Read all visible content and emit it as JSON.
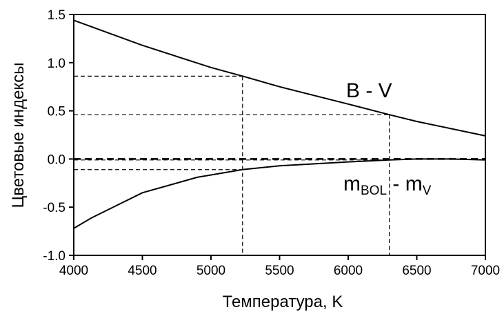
{
  "chart_data": {
    "type": "line",
    "xlabel": "Температура, K",
    "ylabel": "Цветовые индексы",
    "xlim": [
      4000,
      7000
    ],
    "ylim": [
      -1.0,
      1.5
    ],
    "xticks": [
      "4000",
      "4500",
      "5000",
      "5500",
      "6000",
      "6500",
      "7000"
    ],
    "yticks": [
      "1.5",
      "1.0",
      "0.5",
      "0.0",
      "-0.5",
      "-1.0"
    ],
    "grid": false,
    "series": [
      {
        "name": "B - V",
        "x": [
          4000,
          4500,
          5000,
          5230,
          5500,
          6000,
          6300,
          6500,
          7000
        ],
        "y": [
          1.44,
          1.18,
          0.95,
          0.86,
          0.75,
          0.57,
          0.46,
          0.39,
          0.24
        ]
      },
      {
        "name": "m_BOL - m_V",
        "x": [
          4000,
          4130,
          4500,
          4900,
          5230,
          5500,
          6000,
          6300,
          6500,
          6750,
          7000
        ],
        "y": [
          -0.72,
          -0.61,
          -0.35,
          -0.19,
          -0.11,
          -0.07,
          -0.03,
          -0.01,
          0.0,
          0.0,
          -0.01
        ]
      }
    ],
    "series_labels": {
      "bv": "B - V",
      "mbol_main": "m",
      "mbol_sub1": "BOL",
      "mbol_mid": " - m",
      "mbol_sub2": "V"
    },
    "reference_lines": {
      "zero_line_y": 0.0,
      "guides": [
        {
          "x": 5230,
          "y_top": 0.86,
          "y_mid": -0.11
        },
        {
          "x": 6300,
          "y_top": 0.46,
          "y_mid": -0.01
        }
      ]
    }
  }
}
